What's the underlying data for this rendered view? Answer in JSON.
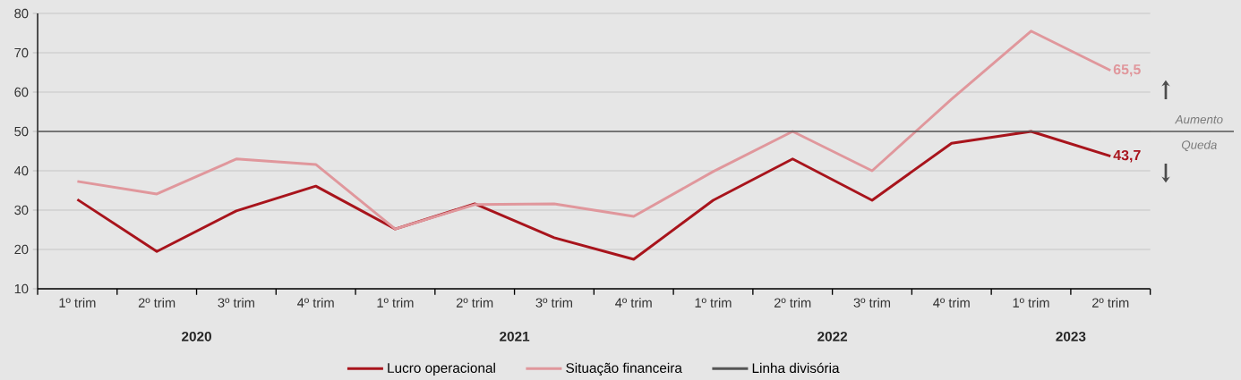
{
  "chart_data": {
    "type": "line",
    "categories": [
      "1º trim",
      "2º trim",
      "3º trim",
      "4º trim",
      "1º trim",
      "2º trim",
      "3º trim",
      "4º trim",
      "1º trim",
      "2º trim",
      "3º trim",
      "4º trim",
      "1º trim",
      "2º trim"
    ],
    "series": [
      {
        "name": "Lucro operacional",
        "color": "#a8141c",
        "values": [
          32.7,
          19.5,
          29.8,
          36.1,
          25.2,
          31.6,
          23,
          17.5,
          32.5,
          43,
          32.5,
          47,
          50,
          43.7
        ],
        "value_labels": [
          null,
          null,
          null,
          null,
          null,
          null,
          null,
          null,
          null,
          null,
          null,
          null,
          null,
          "43,7"
        ]
      },
      {
        "name": "Situação financeira",
        "color": "#e0979c",
        "values": [
          37.3,
          34.1,
          43,
          41.6,
          25.2,
          31.4,
          31.6,
          28.4,
          39.8,
          50,
          40,
          58.2,
          75.5,
          65.5
        ],
        "value_labels": [
          null,
          null,
          null,
          null,
          null,
          null,
          null,
          null,
          null,
          null,
          null,
          null,
          null,
          "65,5"
        ]
      }
    ],
    "ylim": [
      10,
      80
    ],
    "yticks": [
      10,
      20,
      30,
      40,
      50,
      60,
      70,
      80
    ],
    "grid": "y",
    "legend": "bottom",
    "marker": "none",
    "line_style": "solid",
    "ref_lines": [
      {
        "axis": "y",
        "value": 50,
        "label": "Linha divisória",
        "color": "#555555"
      }
    ],
    "annotations": [
      "2020",
      "2021",
      "2022",
      "2023",
      "Aumento",
      "Queda"
    ]
  }
}
